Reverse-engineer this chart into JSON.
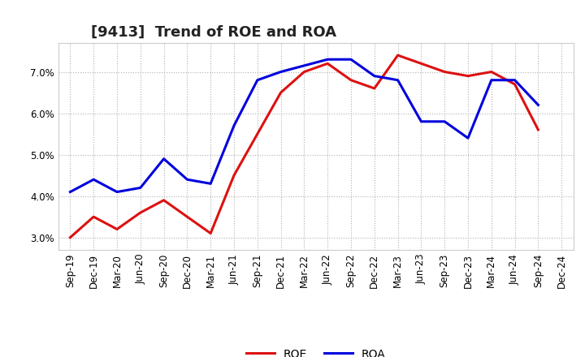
{
  "title": "[9413]  Trend of ROE and ROA",
  "labels": [
    "Sep-19",
    "Dec-19",
    "Mar-20",
    "Jun-20",
    "Sep-20",
    "Dec-20",
    "Mar-21",
    "Jun-21",
    "Sep-21",
    "Dec-21",
    "Mar-22",
    "Jun-22",
    "Sep-22",
    "Dec-22",
    "Mar-23",
    "Jun-23",
    "Sep-23",
    "Dec-23",
    "Mar-24",
    "Jun-24",
    "Sep-24",
    "Dec-24"
  ],
  "ROE": [
    3.0,
    3.5,
    3.2,
    3.6,
    3.9,
    3.5,
    3.1,
    4.5,
    5.5,
    6.5,
    7.0,
    7.2,
    6.8,
    6.6,
    7.4,
    7.2,
    7.0,
    6.9,
    7.0,
    6.7,
    5.6,
    null
  ],
  "ROA": [
    4.1,
    4.4,
    4.1,
    4.2,
    4.9,
    4.4,
    4.3,
    5.7,
    6.8,
    7.0,
    7.15,
    7.3,
    7.3,
    6.9,
    6.8,
    5.8,
    5.8,
    5.4,
    6.8,
    6.8,
    6.2,
    null
  ],
  "roe_color": "#dd1111",
  "roa_color": "#0000dd",
  "ylim": [
    2.7,
    7.7
  ],
  "yticks": [
    3.0,
    4.0,
    5.0,
    6.0,
    7.0
  ],
  "background_color": "#ffffff",
  "grid_color": "#b0b0b0",
  "title_fontsize": 13,
  "legend_fontsize": 10,
  "tick_fontsize": 8.5,
  "linewidth": 2.2
}
